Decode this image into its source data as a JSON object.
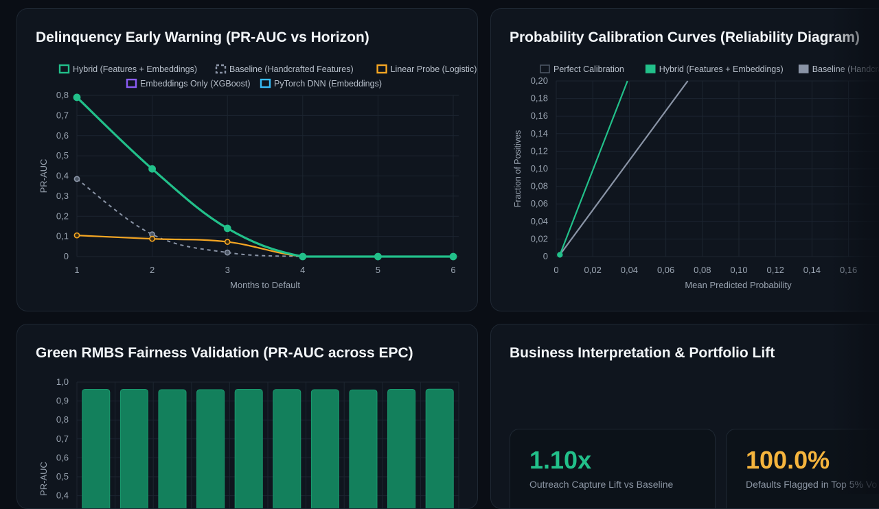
{
  "cards": {
    "delinquency": {
      "title": "Delinquency Early Warning (PR-AUC vs Horizon)"
    },
    "calibration": {
      "title": "Probability Calibration Curves (Reliability Diagram)"
    },
    "fairness": {
      "title": "Green RMBS Fairness Validation (PR-AUC across EPC)"
    },
    "business": {
      "title": "Business Interpretation & Portfolio Lift",
      "kpis": [
        {
          "value": "1.10x",
          "label": "Outreach Capture Lift vs Baseline",
          "color": "#22c08a"
        },
        {
          "value": "100.0%",
          "label": "Defaults Flagged in Top 5% Vo",
          "color": "#f5b43d"
        }
      ]
    }
  },
  "chart_data": [
    {
      "type": "line",
      "title": "Delinquency Early Warning (PR-AUC vs Horizon)",
      "xlabel": "Months to Default",
      "ylabel": "PR-AUC",
      "x": [
        1,
        2,
        3,
        4,
        5,
        6
      ],
      "ylim": [
        0,
        0.8
      ],
      "yticks": [
        "0",
        "0,1",
        "0,2",
        "0,3",
        "0,4",
        "0,5",
        "0,6",
        "0,7",
        "0,8"
      ],
      "xticks": [
        "1",
        "2",
        "3",
        "4",
        "5",
        "6"
      ],
      "legend": [
        {
          "name": "Hybrid (Features + Embeddings)",
          "color": "#22c08a",
          "dash": false
        },
        {
          "name": "Baseline (Handcrafted Features)",
          "color": "#8a94a6",
          "dash": true
        },
        {
          "name": "Linear Probe (Logistic)",
          "color": "#f5a623",
          "dash": false
        },
        {
          "name": "Embeddings Only (XGBoost)",
          "color": "#8b5cf6",
          "dash": false
        },
        {
          "name": "PyTorch DNN (Embeddings)",
          "color": "#38bdf8",
          "dash": false
        }
      ],
      "series": [
        {
          "name": "Hybrid (Features + Embeddings)",
          "values": [
            0.79,
            0.435,
            0.14,
            0.0,
            0.0,
            0.0
          ]
        },
        {
          "name": "Baseline (Handcrafted Features)",
          "values": [
            0.385,
            0.11,
            0.02,
            0.0,
            0.0,
            0.0
          ]
        },
        {
          "name": "Linear Probe (Logistic)",
          "values": [
            0.105,
            0.088,
            0.073,
            0.0,
            0.0,
            0.0
          ]
        }
      ],
      "grid": true,
      "legend_position": "top"
    },
    {
      "type": "line",
      "title": "Probability Calibration Curves (Reliability Diagram)",
      "xlabel": "Mean Predicted Probability",
      "ylabel": "Fraction of Positives",
      "xlim": [
        0,
        0.18
      ],
      "ylim": [
        0,
        0.2
      ],
      "xticks": [
        "0",
        "0,02",
        "0,04",
        "0,06",
        "0,08",
        "0,10",
        "0,12",
        "0,14",
        "0,16"
      ],
      "yticks": [
        "0",
        "0,02",
        "0,04",
        "0,06",
        "0,08",
        "0,10",
        "0,12",
        "0,14",
        "0,16",
        "0,18",
        "0,20"
      ],
      "legend": [
        {
          "name": "Perfect Calibration",
          "color": "#4b5563",
          "fill": "#0f151e"
        },
        {
          "name": "Hybrid (Features + Embeddings)",
          "color": "#22c08a",
          "fill": "#22c08a"
        },
        {
          "name": "Baseline (Handcrafted Features)",
          "color": "#8a94a6",
          "fill": "#8a94a6"
        }
      ],
      "series": [
        {
          "name": "Hybrid (Features + Embeddings)",
          "points": [
            [
              0.002,
              0.002
            ],
            [
              0.039,
              0.2
            ]
          ]
        },
        {
          "name": "Baseline (Handcrafted Features)",
          "points": [
            [
              0.002,
              0.002
            ],
            [
              0.072,
              0.2
            ]
          ]
        }
      ],
      "grid": true,
      "legend_position": "top"
    },
    {
      "type": "bar",
      "title": "Green RMBS Fairness Validation (PR-AUC across EPC)",
      "ylabel": "PR-AUC",
      "ylim": [
        0,
        1.0
      ],
      "yticks": [
        "1,0",
        "0,9",
        "0,8",
        "0,7",
        "0,6",
        "0,5",
        "0,4"
      ],
      "values": [
        0.962,
        0.962,
        0.96,
        0.96,
        0.962,
        0.961,
        0.96,
        0.959,
        0.962,
        0.963
      ],
      "color": "#13805c",
      "grid": true
    }
  ]
}
